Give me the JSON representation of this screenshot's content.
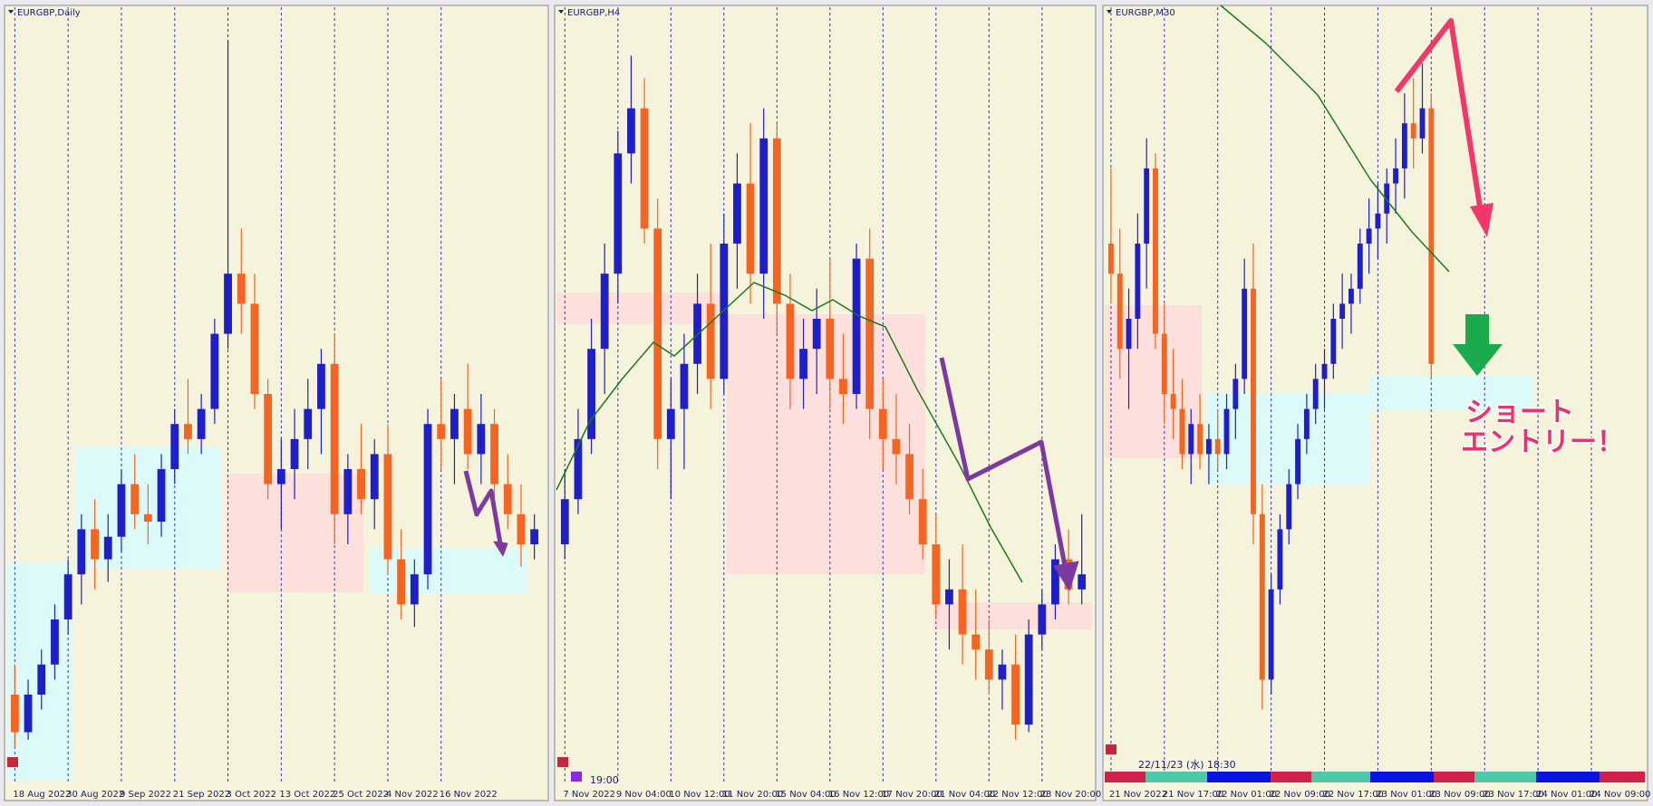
{
  "chart_data": [
    {
      "type": "candlestick",
      "title": "EURGBP,Daily",
      "ylim": [
        0,
        100
      ],
      "colors": {
        "up": "#1f1fc8",
        "down": "#f26522"
      },
      "categories": [
        "18 Aug 2022",
        null,
        null,
        null,
        "30 Aug 2022",
        null,
        null,
        null,
        "9 Sep 2022",
        null,
        null,
        null,
        "21 Sep 2022",
        null,
        null,
        null,
        "3 Oct 2022",
        null,
        null,
        null,
        "13 Oct 2022",
        null,
        null,
        null,
        "25 Oct 2022",
        null,
        null,
        null,
        "4 Nov 2022",
        null,
        null,
        null,
        "16 Nov 2022",
        null,
        null,
        null,
        null,
        null,
        null,
        null
      ],
      "ohlc": [
        [
          10,
          14,
          3,
          5
        ],
        [
          5,
          12,
          4,
          10
        ],
        [
          10,
          16,
          8,
          14
        ],
        [
          14,
          22,
          12,
          20
        ],
        [
          20,
          28,
          18,
          26
        ],
        [
          26,
          34,
          22,
          32
        ],
        [
          32,
          36,
          24,
          28
        ],
        [
          28,
          34,
          25,
          31
        ],
        [
          31,
          40,
          29,
          38
        ],
        [
          38,
          42,
          32,
          34
        ],
        [
          34,
          38,
          30,
          33
        ],
        [
          33,
          42,
          31,
          40
        ],
        [
          40,
          48,
          38,
          46
        ],
        [
          46,
          52,
          42,
          44
        ],
        [
          44,
          50,
          42,
          48
        ],
        [
          48,
          60,
          46,
          58
        ],
        [
          58,
          97,
          56,
          66
        ],
        [
          66,
          72,
          58,
          62
        ],
        [
          62,
          66,
          48,
          50
        ],
        [
          50,
          52,
          36,
          38
        ],
        [
          38,
          44,
          32,
          40
        ],
        [
          40,
          48,
          36,
          44
        ],
        [
          44,
          52,
          40,
          48
        ],
        [
          48,
          56,
          42,
          54
        ],
        [
          54,
          58,
          30,
          34
        ],
        [
          34,
          42,
          30,
          40
        ],
        [
          40,
          46,
          34,
          36
        ],
        [
          36,
          44,
          32,
          42
        ],
        [
          42,
          46,
          26,
          28
        ],
        [
          28,
          32,
          20,
          22
        ],
        [
          22,
          28,
          19,
          26
        ],
        [
          26,
          48,
          24,
          46
        ],
        [
          46,
          52,
          40,
          44
        ],
        [
          44,
          50,
          38,
          48
        ],
        [
          48,
          54,
          40,
          42
        ],
        [
          42,
          50,
          38,
          46
        ],
        [
          46,
          48,
          36,
          38
        ],
        [
          38,
          42,
          32,
          34
        ],
        [
          34,
          38,
          27,
          30
        ],
        [
          30,
          34,
          28,
          32
        ]
      ]
    },
    {
      "type": "candlestick",
      "title": "EURGBP,H4",
      "ylim": [
        0,
        100
      ],
      "colors": {
        "up": "#1f1fc8",
        "down": "#f26522"
      },
      "time": "19:00",
      "categories": [
        "7 Nov 2022",
        null,
        null,
        null,
        "9 Nov 04:00",
        null,
        null,
        null,
        "10 Nov 12:00",
        null,
        null,
        null,
        "11 Nov 20:00",
        null,
        null,
        null,
        "15 Nov 04:00",
        null,
        null,
        null,
        "16 Nov 12:00",
        null,
        null,
        null,
        "17 Nov 20:00",
        null,
        null,
        null,
        "21 Nov 04:00",
        null,
        null,
        null,
        "22 Nov 12:00",
        null,
        null,
        null,
        "23 Nov 20:00",
        null,
        null,
        null
      ],
      "ohlc": [
        [
          30,
          40,
          28,
          36
        ],
        [
          36,
          48,
          34,
          44
        ],
        [
          44,
          60,
          42,
          56
        ],
        [
          56,
          70,
          50,
          66
        ],
        [
          66,
          85,
          62,
          82
        ],
        [
          82,
          95,
          78,
          88
        ],
        [
          88,
          92,
          70,
          72
        ],
        [
          72,
          76,
          40,
          44
        ],
        [
          44,
          52,
          36,
          48
        ],
        [
          48,
          58,
          40,
          54
        ],
        [
          54,
          66,
          50,
          62
        ],
        [
          62,
          70,
          48,
          52
        ],
        [
          52,
          74,
          50,
          70
        ],
        [
          70,
          82,
          64,
          78
        ],
        [
          78,
          86,
          62,
          66
        ],
        [
          66,
          88,
          60,
          84
        ],
        [
          84,
          86,
          58,
          62
        ],
        [
          62,
          66,
          48,
          52
        ],
        [
          52,
          60,
          48,
          56
        ],
        [
          56,
          64,
          50,
          60
        ],
        [
          60,
          68,
          48,
          52
        ],
        [
          52,
          58,
          46,
          50
        ],
        [
          50,
          70,
          48,
          68
        ],
        [
          68,
          72,
          44,
          48
        ],
        [
          48,
          52,
          40,
          44
        ],
        [
          44,
          50,
          38,
          42
        ],
        [
          42,
          46,
          34,
          36
        ],
        [
          36,
          40,
          28,
          30
        ],
        [
          30,
          34,
          20,
          22
        ],
        [
          22,
          28,
          16,
          24
        ],
        [
          24,
          30,
          14,
          18
        ],
        [
          18,
          24,
          12,
          16
        ],
        [
          16,
          20,
          10,
          12
        ],
        [
          12,
          16,
          8,
          14
        ],
        [
          14,
          18,
          4,
          6
        ],
        [
          6,
          20,
          5,
          18
        ],
        [
          18,
          24,
          16,
          22
        ],
        [
          22,
          30,
          20,
          28
        ],
        [
          28,
          32,
          22,
          24
        ],
        [
          24,
          34,
          22,
          26
        ]
      ]
    },
    {
      "type": "candlestick",
      "title": "EURGBP,M30",
      "ylim": [
        0,
        100
      ],
      "colors": {
        "up": "#1f1fc8",
        "down": "#f26522"
      },
      "time": "22/11/23 (水) 18:30",
      "annotation": [
        "ショート",
        "エントリー！"
      ],
      "categories": [
        "21 Nov 2022",
        null,
        null,
        null,
        null,
        null,
        "21 Nov 17:00",
        null,
        null,
        null,
        null,
        null,
        "22 Nov 01:00",
        null,
        null,
        null,
        null,
        null,
        "22 Nov 09:00",
        null,
        null,
        null,
        null,
        null,
        "22 Nov 17:00",
        null,
        null,
        null,
        null,
        null,
        "23 Nov 01:00",
        null,
        null,
        null,
        null,
        null,
        "23 Nov 09:00",
        null,
        null,
        null,
        null,
        null,
        "23 Nov 17:00",
        null,
        null,
        null,
        null,
        null,
        "24 Nov 01:00",
        null,
        null,
        null,
        null,
        null,
        "24 Nov 09:00",
        null,
        null,
        null,
        null,
        null
      ],
      "ohlc": [
        [
          70,
          80,
          62,
          66
        ],
        [
          66,
          72,
          52,
          56
        ],
        [
          56,
          64,
          48,
          60
        ],
        [
          60,
          74,
          56,
          70
        ],
        [
          70,
          84,
          64,
          80
        ],
        [
          80,
          82,
          56,
          58
        ],
        [
          58,
          62,
          46,
          50
        ],
        [
          50,
          56,
          44,
          48
        ],
        [
          48,
          52,
          40,
          42
        ],
        [
          42,
          48,
          38,
          46
        ],
        [
          46,
          50,
          40,
          42
        ],
        [
          42,
          46,
          38,
          44
        ],
        [
          44,
          48,
          40,
          42
        ],
        [
          42,
          50,
          40,
          48
        ],
        [
          48,
          54,
          44,
          52
        ],
        [
          52,
          68,
          50,
          64
        ],
        [
          64,
          70,
          30,
          34
        ],
        [
          34,
          38,
          8,
          12
        ],
        [
          12,
          26,
          10,
          24
        ],
        [
          24,
          34,
          22,
          32
        ],
        [
          32,
          40,
          30,
          38
        ],
        [
          38,
          46,
          36,
          44
        ],
        [
          44,
          50,
          42,
          48
        ],
        [
          48,
          54,
          46,
          52
        ],
        [
          52,
          56,
          48,
          54
        ],
        [
          54,
          62,
          52,
          60
        ],
        [
          60,
          66,
          56,
          62
        ],
        [
          62,
          66,
          58,
          64
        ],
        [
          64,
          72,
          62,
          70
        ],
        [
          70,
          76,
          66,
          72
        ],
        [
          72,
          78,
          68,
          74
        ],
        [
          74,
          80,
          70,
          78
        ],
        [
          78,
          84,
          74,
          80
        ],
        [
          80,
          90,
          76,
          86
        ],
        [
          86,
          92,
          80,
          84
        ],
        [
          84,
          94,
          82,
          88
        ],
        [
          88,
          90,
          52,
          54
        ],
        null,
        null,
        null,
        null,
        null,
        null,
        null,
        null,
        null,
        null,
        null,
        null,
        null,
        null,
        null,
        null,
        null,
        null,
        null,
        null,
        null,
        null,
        null
      ]
    }
  ]
}
